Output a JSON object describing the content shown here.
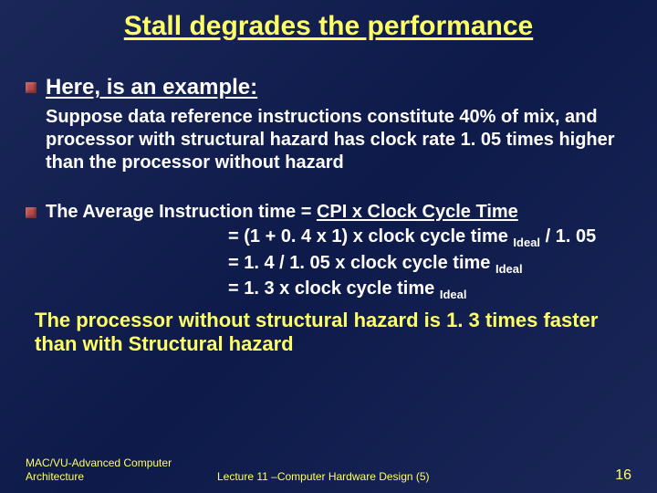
{
  "colors": {
    "background_gradient_start": "#1a2758",
    "background_gradient_end": "#0d1a4a",
    "title_color": "#ffff66",
    "body_text_color": "#ffffff",
    "conclusion_color": "#ffff66",
    "bullet_color": "#b84a4a",
    "footer_color": "#ffff66"
  },
  "typography": {
    "title_fontsize": 30,
    "heading_fontsize": 24,
    "body_fontsize": 20,
    "conclusion_fontsize": 22,
    "footer_fontsize": 12,
    "subscript_fontsize": 13,
    "font_family": "Arial",
    "font_weight": "bold"
  },
  "title": "Stall degrades the performance",
  "example_heading": "Here, is an example:",
  "example_paragraph": "Suppose data reference instructions constitute 40% of mix, and processor with structural hazard has clock rate 1. 05 times higher than the processor without hazard",
  "formula": {
    "line1_prefix": "The Average Instruction time = ",
    "line1_underlined": "CPI x Clock Cycle Time",
    "line2_text": "= (1 + 0. 4 x 1) x clock cycle time ",
    "line2_sub": "Ideal",
    "line2_suffix": " / 1. 05",
    "line3_text": "= 1. 4 / 1. 05 x clock cycle time ",
    "line3_sub": "Ideal",
    "line4_text": "= 1. 3 x clock cycle time ",
    "line4_sub": "Ideal"
  },
  "conclusion": "The processor without structural hazard is 1. 3 times faster than with Structural hazard",
  "footer": {
    "left": "MAC/VU-Advanced Computer Architecture",
    "center": "Lecture 11 –Computer Hardware Design (5)",
    "page_number": "16"
  }
}
